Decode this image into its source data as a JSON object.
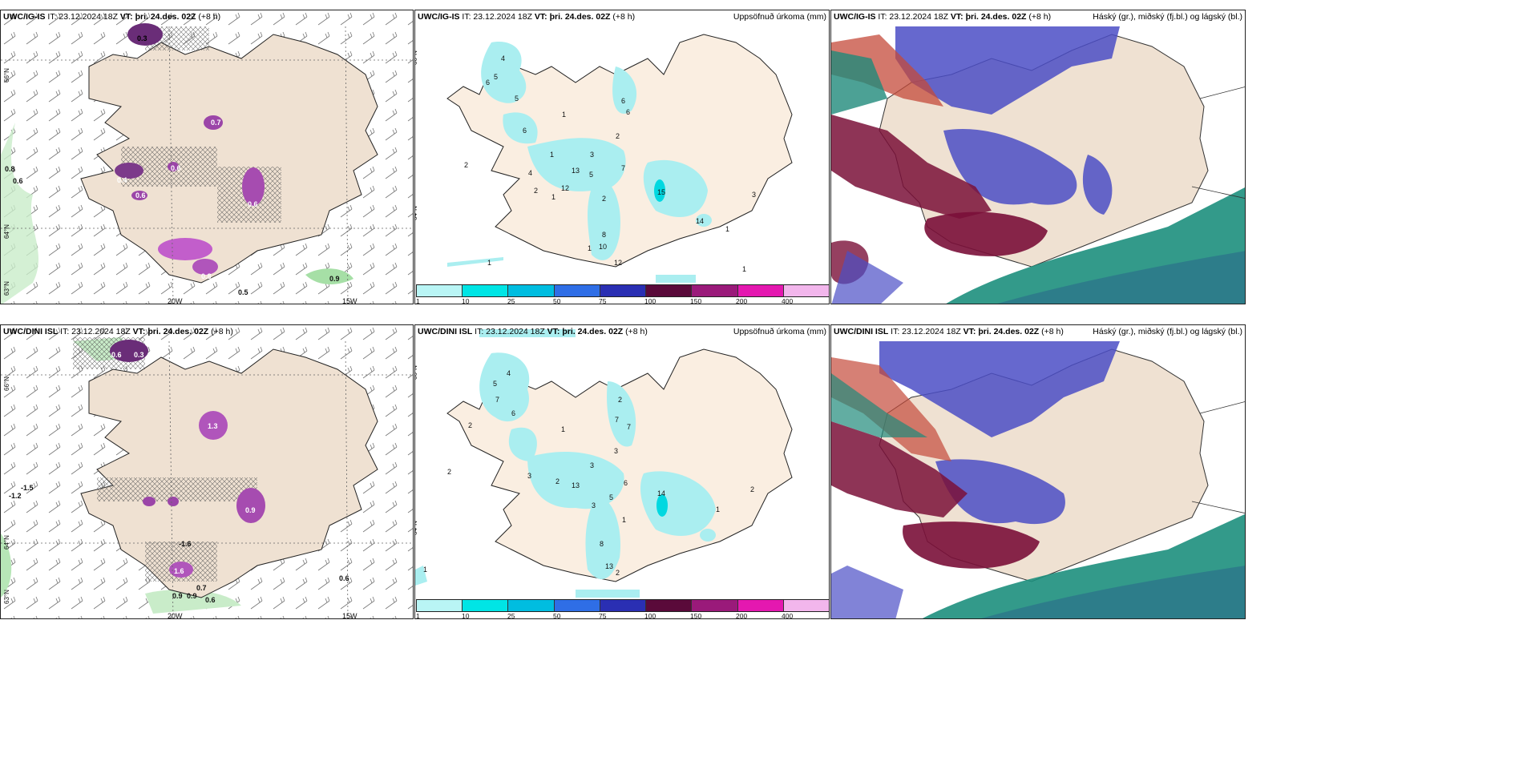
{
  "panels": {
    "top": {
      "header_main": "UWC/IG-IS",
      "header_it": " IT: 23.12.2024 18Z ",
      "header_vt_label": "VT:",
      "header_vt": " þri. 24.des. 02Z",
      "header_lead": " (+8 h)"
    },
    "bottom": {
      "header_main": "UWC/DINI ISL",
      "header_it": " IT: 23.12.2024 18Z ",
      "header_vt_label": "VT:",
      "header_vt": " þri. 24.des. 02Z",
      "header_lead": " (+8 h)"
    },
    "precip_title": "Uppsöfnuð úrkoma (mm)",
    "cloud_title": "Háský (gr.), miðský (fj.bl.) og lágský (bl.)"
  },
  "axes": {
    "lat_66": "66°N",
    "lat_64": "64°N",
    "lat_63": "63°N",
    "lon_20": "20W",
    "lon_15": "15W"
  },
  "colorbar": {
    "ticks": [
      "1",
      "10",
      "25",
      "50",
      "75",
      "100",
      "150",
      "200",
      "400"
    ],
    "colors": [
      "#b9f5f5",
      "#00e5e5",
      "#00bde0",
      "#2f6ee6",
      "#2a2fb3",
      "#5a0a3a",
      "#9a1a7a",
      "#e418b0",
      "#f2b6ec"
    ]
  },
  "top_temp_labels": [
    "0.3",
    "0.3",
    "0.7",
    "0.4",
    "0.6",
    "0.6",
    "0.8",
    "0.6",
    "0.8",
    "0.6",
    "0.9",
    "0.5"
  ],
  "bottom_temp_labels": [
    "0.6",
    "0.3",
    "1.3",
    "-1.5",
    "-1.2",
    "0.9",
    "-1.6",
    "1.6",
    "0.9",
    "0.9",
    "0.7",
    "0.6",
    "0.6"
  ],
  "top_precip_labels": [
    "4",
    "5",
    "6",
    "5",
    "6",
    "1",
    "1",
    "3",
    "4",
    "13",
    "5",
    "2",
    "12",
    "1",
    "7",
    "2",
    "6",
    "6",
    "2",
    "15",
    "14",
    "8",
    "10",
    "1",
    "12",
    "3",
    "1",
    "1",
    "2",
    "1"
  ],
  "bottom_precip_labels": [
    "4",
    "5",
    "6",
    "7",
    "2",
    "1",
    "2",
    "7",
    "7",
    "3",
    "3",
    "3",
    "2",
    "13",
    "5",
    "6",
    "14",
    "3",
    "2",
    "1",
    "8",
    "13",
    "2",
    "1",
    "1",
    "2"
  ]
}
